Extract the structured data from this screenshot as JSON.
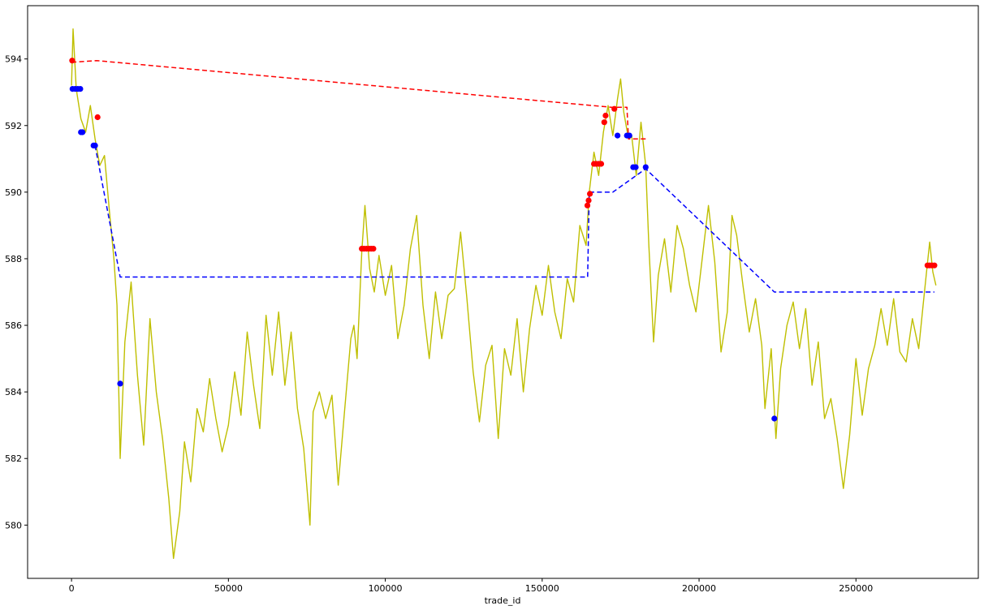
{
  "chart_data": {
    "type": "line",
    "xlabel": "trade_id",
    "ylabel": "",
    "xlim": [
      -14000,
      289000
    ],
    "ylim": [
      578.4,
      595.6
    ],
    "x_ticks": [
      0,
      50000,
      100000,
      150000,
      200000,
      250000
    ],
    "x_tick_labels": [
      "0",
      "50000",
      "100000",
      "150000",
      "200000",
      "250000"
    ],
    "y_ticks": [
      580,
      582,
      584,
      586,
      588,
      590,
      592,
      594
    ],
    "y_tick_labels": [
      "580",
      "582",
      "584",
      "586",
      "588",
      "590",
      "592",
      "594"
    ],
    "grid": false,
    "series": [
      {
        "style": "solid",
        "color": "#bfbf00",
        "points": [
          [
            0,
            593.2
          ],
          [
            500,
            594.9
          ],
          [
            1500,
            593.1
          ],
          [
            3000,
            592.2
          ],
          [
            4500,
            591.8
          ],
          [
            6000,
            592.6
          ],
          [
            7500,
            591.6
          ],
          [
            9000,
            590.8
          ],
          [
            10500,
            591.1
          ],
          [
            12000,
            589.5
          ],
          [
            13500,
            588.0
          ],
          [
            14500,
            586.6
          ],
          [
            15500,
            582.0
          ],
          [
            17000,
            585.5
          ],
          [
            19000,
            587.3
          ],
          [
            21000,
            584.5
          ],
          [
            23000,
            582.4
          ],
          [
            25000,
            586.2
          ],
          [
            27000,
            584.0
          ],
          [
            29000,
            582.6
          ],
          [
            31000,
            580.8
          ],
          [
            32500,
            579.0
          ],
          [
            34500,
            580.4
          ],
          [
            36000,
            582.5
          ],
          [
            38000,
            581.3
          ],
          [
            40000,
            583.5
          ],
          [
            42000,
            582.8
          ],
          [
            44000,
            584.4
          ],
          [
            46000,
            583.2
          ],
          [
            48000,
            582.2
          ],
          [
            50000,
            583.0
          ],
          [
            52000,
            584.6
          ],
          [
            54000,
            583.3
          ],
          [
            56000,
            585.8
          ],
          [
            58000,
            584.2
          ],
          [
            60000,
            582.9
          ],
          [
            62000,
            586.3
          ],
          [
            64000,
            584.5
          ],
          [
            66000,
            586.4
          ],
          [
            68000,
            584.2
          ],
          [
            70000,
            585.8
          ],
          [
            72000,
            583.5
          ],
          [
            74000,
            582.3
          ],
          [
            76000,
            580.0
          ],
          [
            77000,
            583.4
          ],
          [
            79000,
            584.0
          ],
          [
            81000,
            583.2
          ],
          [
            83000,
            583.9
          ],
          [
            85000,
            581.2
          ],
          [
            87000,
            583.4
          ],
          [
            89000,
            585.6
          ],
          [
            90000,
            586.0
          ],
          [
            91000,
            585.0
          ],
          [
            92500,
            588.2
          ],
          [
            93500,
            589.6
          ],
          [
            95000,
            587.7
          ],
          [
            96500,
            587.0
          ],
          [
            98000,
            588.1
          ],
          [
            100000,
            586.9
          ],
          [
            102000,
            587.8
          ],
          [
            104000,
            585.6
          ],
          [
            106000,
            586.6
          ],
          [
            108000,
            588.3
          ],
          [
            110000,
            589.3
          ],
          [
            112000,
            586.6
          ],
          [
            114000,
            585.0
          ],
          [
            116000,
            587.0
          ],
          [
            118000,
            585.6
          ],
          [
            120000,
            586.9
          ],
          [
            122000,
            587.1
          ],
          [
            124000,
            588.8
          ],
          [
            126000,
            586.8
          ],
          [
            128000,
            584.6
          ],
          [
            130000,
            583.1
          ],
          [
            132000,
            584.8
          ],
          [
            134000,
            585.4
          ],
          [
            136000,
            582.6
          ],
          [
            138000,
            585.3
          ],
          [
            140000,
            584.5
          ],
          [
            142000,
            586.2
          ],
          [
            144000,
            584.0
          ],
          [
            146000,
            585.9
          ],
          [
            148000,
            587.2
          ],
          [
            150000,
            586.3
          ],
          [
            152000,
            587.8
          ],
          [
            154000,
            586.4
          ],
          [
            156000,
            585.6
          ],
          [
            158000,
            587.4
          ],
          [
            160000,
            586.7
          ],
          [
            162000,
            589.0
          ],
          [
            164000,
            588.4
          ],
          [
            165000,
            590.0
          ],
          [
            166500,
            591.2
          ],
          [
            168000,
            590.5
          ],
          [
            169500,
            591.8
          ],
          [
            171000,
            592.6
          ],
          [
            172500,
            591.7
          ],
          [
            174000,
            592.8
          ],
          [
            175000,
            593.4
          ],
          [
            176000,
            592.4
          ],
          [
            177500,
            591.6
          ],
          [
            178500,
            591.7
          ],
          [
            180000,
            590.5
          ],
          [
            181500,
            592.1
          ],
          [
            183000,
            590.8
          ],
          [
            184000,
            588.4
          ],
          [
            185500,
            585.5
          ],
          [
            187000,
            587.5
          ],
          [
            189000,
            588.6
          ],
          [
            191000,
            587.0
          ],
          [
            193000,
            589.0
          ],
          [
            195000,
            588.3
          ],
          [
            197000,
            587.2
          ],
          [
            199000,
            586.4
          ],
          [
            201000,
            588.0
          ],
          [
            203000,
            589.6
          ],
          [
            205000,
            587.9
          ],
          [
            207000,
            585.2
          ],
          [
            209000,
            586.4
          ],
          [
            210500,
            589.3
          ],
          [
            212000,
            588.7
          ],
          [
            214000,
            587.2
          ],
          [
            216000,
            585.8
          ],
          [
            218000,
            586.8
          ],
          [
            220000,
            585.4
          ],
          [
            221000,
            583.5
          ],
          [
            223000,
            585.3
          ],
          [
            224500,
            582.6
          ],
          [
            226000,
            584.7
          ],
          [
            228000,
            586.0
          ],
          [
            230000,
            586.7
          ],
          [
            232000,
            585.3
          ],
          [
            234000,
            586.5
          ],
          [
            236000,
            584.2
          ],
          [
            238000,
            585.5
          ],
          [
            240000,
            583.2
          ],
          [
            242000,
            583.8
          ],
          [
            244000,
            582.6
          ],
          [
            246000,
            581.1
          ],
          [
            248000,
            582.7
          ],
          [
            250000,
            585.0
          ],
          [
            252000,
            583.3
          ],
          [
            254000,
            584.7
          ],
          [
            256000,
            585.4
          ],
          [
            258000,
            586.5
          ],
          [
            260000,
            585.4
          ],
          [
            262000,
            586.8
          ],
          [
            264000,
            585.2
          ],
          [
            266000,
            584.9
          ],
          [
            268000,
            586.2
          ],
          [
            270000,
            585.3
          ],
          [
            271500,
            586.7
          ],
          [
            272500,
            587.6
          ],
          [
            273500,
            588.5
          ],
          [
            274500,
            587.6
          ],
          [
            275500,
            587.2
          ]
        ]
      },
      {
        "style": "dashed",
        "color": "#ff0000",
        "points": [
          [
            0,
            593.9
          ],
          [
            8000,
            593.95
          ],
          [
            172000,
            592.55
          ],
          [
            177000,
            592.55
          ],
          [
            177500,
            591.6
          ],
          [
            183500,
            591.6
          ]
        ]
      },
      {
        "style": "dashed",
        "color": "#0000ff",
        "points": [
          [
            7500,
            591.4
          ],
          [
            15500,
            587.45
          ],
          [
            164500,
            587.45
          ],
          [
            165000,
            590.0
          ],
          [
            172500,
            590.0
          ],
          [
            183000,
            590.7
          ],
          [
            224000,
            587.0
          ],
          [
            275000,
            587.0
          ]
        ]
      }
    ],
    "markers": [
      {
        "color": "#ff0000",
        "points": [
          [
            200,
            593.95
          ],
          [
            8300,
            592.25
          ],
          [
            92500,
            588.3
          ],
          [
            93200,
            588.3
          ],
          [
            94000,
            588.3
          ],
          [
            94800,
            588.3
          ],
          [
            95500,
            588.3
          ],
          [
            96200,
            588.3
          ],
          [
            164400,
            589.6
          ],
          [
            164800,
            589.75
          ],
          [
            165200,
            589.95
          ],
          [
            166500,
            590.85
          ],
          [
            167200,
            590.85
          ],
          [
            168000,
            590.85
          ],
          [
            168800,
            590.85
          ],
          [
            169800,
            592.1
          ],
          [
            170200,
            592.3
          ],
          [
            173000,
            592.5
          ],
          [
            272800,
            587.8
          ],
          [
            273500,
            587.8
          ],
          [
            274200,
            587.8
          ],
          [
            275000,
            587.8
          ]
        ]
      },
      {
        "color": "#0000ff",
        "points": [
          [
            300,
            593.1
          ],
          [
            1200,
            593.1
          ],
          [
            2000,
            593.1
          ],
          [
            2800,
            593.1
          ],
          [
            3000,
            591.8
          ],
          [
            3500,
            591.8
          ],
          [
            7000,
            591.4
          ],
          [
            7500,
            591.4
          ],
          [
            15500,
            584.25
          ],
          [
            174000,
            591.7
          ],
          [
            177000,
            591.7
          ],
          [
            177800,
            591.7
          ],
          [
            179000,
            590.75
          ],
          [
            179800,
            590.75
          ],
          [
            183000,
            590.75
          ],
          [
            224000,
            583.2
          ]
        ]
      }
    ]
  }
}
